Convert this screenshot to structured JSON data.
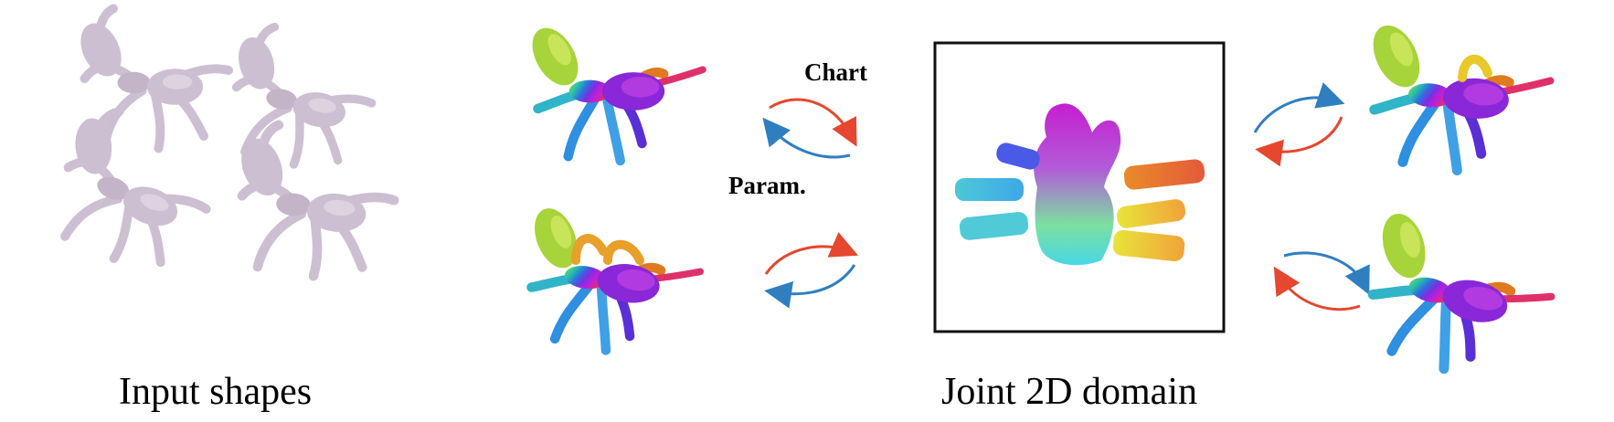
{
  "captions": {
    "input": "Input shapes",
    "domain": "Joint 2D domain"
  },
  "arrow_labels": {
    "chart": "Chart",
    "param": "Param."
  },
  "colors": {
    "input_shape": "#cdbfd2",
    "input_shape_shade": "#b9aabf",
    "arrow_forward": "#e5472f",
    "arrow_backward": "#2f7fc0",
    "frame": "#111111"
  },
  "icons": {
    "shape": "ant-mesh-icon",
    "chart": "uv-chart-icon"
  }
}
